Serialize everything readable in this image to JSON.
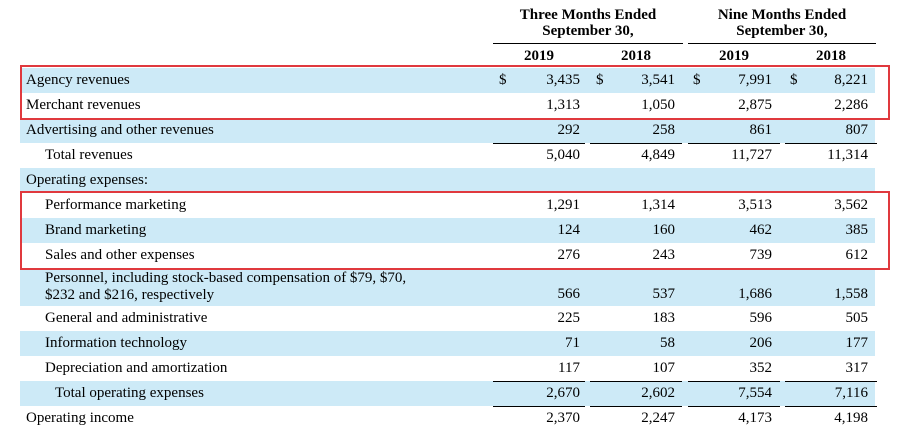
{
  "header": {
    "three_months_line1": "Three Months Ended",
    "three_months_line2": "September 30,",
    "nine_months_line1": "Nine Months Ended",
    "nine_months_line2": "September 30,",
    "years": [
      "2019",
      "2018",
      "2019",
      "2018"
    ]
  },
  "currency_symbol": "$",
  "rows": [
    {
      "label": "Agency revenues",
      "values": [
        "3,435",
        "3,541",
        "7,991",
        "8,221"
      ]
    },
    {
      "label": "Merchant revenues",
      "values": [
        "1,313",
        "1,050",
        "2,875",
        "2,286"
      ]
    },
    {
      "label": "Advertising and other revenues",
      "values": [
        "292",
        "258",
        "861",
        "807"
      ]
    },
    {
      "label": "Total revenues",
      "values": [
        "5,040",
        "4,849",
        "11,727",
        "11,314"
      ]
    },
    {
      "label": "Operating expenses:",
      "values": [
        "",
        "",
        "",
        ""
      ]
    },
    {
      "label": "Performance marketing",
      "values": [
        "1,291",
        "1,314",
        "3,513",
        "3,562"
      ]
    },
    {
      "label": "Brand marketing",
      "values": [
        "124",
        "160",
        "462",
        "385"
      ]
    },
    {
      "label": "Sales and other expenses",
      "values": [
        "276",
        "243",
        "739",
        "612"
      ]
    },
    {
      "label": "Personnel, including stock-based compensation of $79, $70,",
      "label2": "$232 and $216, respectively",
      "values": [
        "566",
        "537",
        "1,686",
        "1,558"
      ]
    },
    {
      "label": "General and administrative",
      "values": [
        "225",
        "183",
        "596",
        "505"
      ]
    },
    {
      "label": "Information technology",
      "values": [
        "71",
        "58",
        "206",
        "177"
      ]
    },
    {
      "label": "Depreciation and amortization",
      "values": [
        "117",
        "107",
        "352",
        "317"
      ]
    },
    {
      "label": "Total operating expenses",
      "values": [
        "2,670",
        "2,602",
        "7,554",
        "7,116"
      ]
    },
    {
      "label": "Operating income",
      "values": [
        "2,370",
        "2,247",
        "4,173",
        "4,198"
      ]
    }
  ],
  "highlight_color": "#e0393e",
  "shade_color": "#cdeaf7"
}
